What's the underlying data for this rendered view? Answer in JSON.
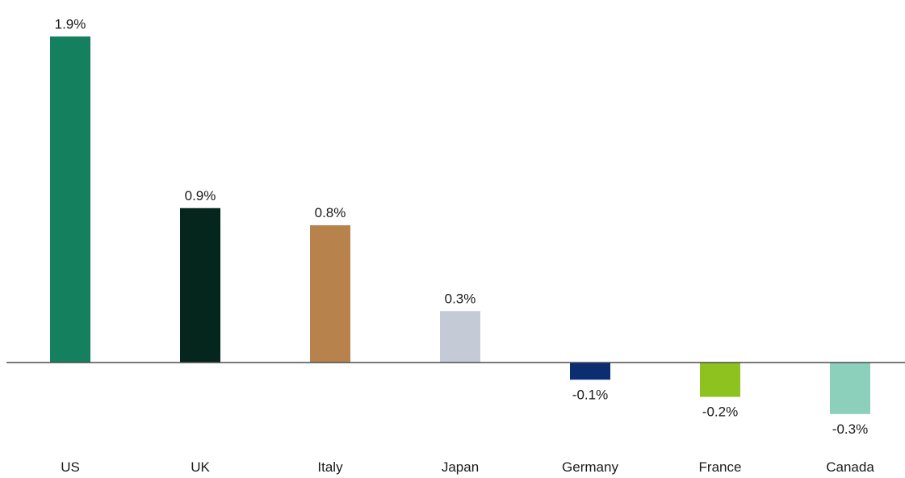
{
  "chart_data": {
    "type": "bar",
    "categories": [
      "US",
      "UK",
      "Italy",
      "Japan",
      "Germany",
      "France",
      "Canada"
    ],
    "values": [
      1.9,
      0.9,
      0.8,
      0.3,
      -0.1,
      -0.2,
      -0.3
    ],
    "value_labels": [
      "1.9%",
      "0.9%",
      "0.8%",
      "0.3%",
      "-0.1%",
      "-0.2%",
      "-0.3%"
    ],
    "colors": [
      "#14805e",
      "#04261c",
      "#b8824d",
      "#c4cad6",
      "#0b2d72",
      "#8dc21f",
      "#8ccfba"
    ],
    "title": "",
    "xlabel": "",
    "ylabel": "",
    "grid": false,
    "legend": "none"
  }
}
